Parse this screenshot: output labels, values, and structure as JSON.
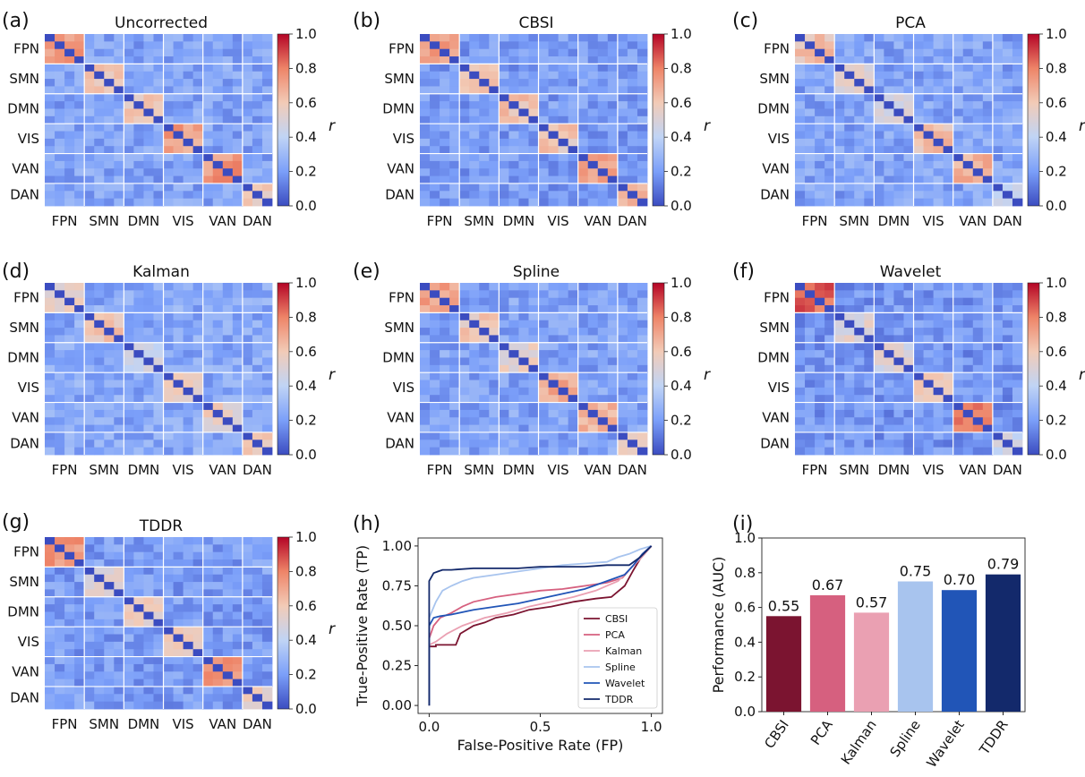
{
  "colors": {
    "cmap_stops": [
      "#3b4cc0",
      "#7b9ff9",
      "#c0d4f5",
      "#f2cbb7",
      "#ee8468",
      "#b40426"
    ],
    "roc_series": [
      "#7b1430",
      "#d6607f",
      "#eaa0b2",
      "#a8c4ee",
      "#2155b7",
      "#13296b"
    ]
  },
  "chart_data": [
    {
      "type": "heatmap",
      "panel_label": "(a)",
      "title": "Uncorrected",
      "networks": [
        "FPN",
        "SMN",
        "DMN",
        "VIS",
        "VAN",
        "DAN"
      ],
      "tick_labels": [
        "FPN",
        "SMN",
        "DMN",
        "VIS",
        "VAN",
        "DAN"
      ],
      "network_sizes": [
        4,
        4,
        4,
        4,
        4,
        3
      ],
      "within_network_r": [
        0.75,
        0.62,
        0.58,
        0.72,
        0.75,
        0.58
      ],
      "background_r": 0.22,
      "diagonal_r": 0.0,
      "colorbar": {
        "label": "r",
        "vmin": 0.0,
        "vmax": 1.0,
        "ticks": [
          "0.0",
          "0.2",
          "0.4",
          "0.6",
          "0.8",
          "1.0"
        ]
      }
    },
    {
      "type": "heatmap",
      "panel_label": "(b)",
      "title": "CBSI",
      "networks": [
        "FPN",
        "SMN",
        "DMN",
        "VIS",
        "VAN",
        "DAN"
      ],
      "tick_labels": [
        "FPN",
        "SMN",
        "DMN",
        "VIS",
        "VAN",
        "DAN"
      ],
      "network_sizes": [
        4,
        4,
        4,
        4,
        4,
        3
      ],
      "within_network_r": [
        0.75,
        0.6,
        0.62,
        0.6,
        0.72,
        0.7
      ],
      "background_r": 0.2,
      "diagonal_r": 0.0,
      "colorbar": {
        "label": "r",
        "vmin": 0.0,
        "vmax": 1.0,
        "ticks": [
          "0.0",
          "0.2",
          "0.4",
          "0.6",
          "0.8",
          "1.0"
        ]
      }
    },
    {
      "type": "heatmap",
      "panel_label": "(c)",
      "title": "PCA",
      "networks": [
        "FPN",
        "SMN",
        "DMN",
        "VIS",
        "VAN",
        "DAN"
      ],
      "tick_labels": [
        "FPN",
        "SMN",
        "DMN",
        "VIS",
        "VAN",
        "DAN"
      ],
      "network_sizes": [
        4,
        4,
        4,
        4,
        4,
        3
      ],
      "within_network_r": [
        0.62,
        0.52,
        0.5,
        0.62,
        0.68,
        0.45
      ],
      "background_r": 0.22,
      "diagonal_r": 0.0,
      "colorbar": {
        "label": "r",
        "vmin": 0.0,
        "vmax": 1.0,
        "ticks": [
          "0.0",
          "0.2",
          "0.4",
          "0.6",
          "0.8",
          "1.0"
        ]
      }
    },
    {
      "type": "heatmap",
      "panel_label": "(d)",
      "title": "Kalman",
      "networks": [
        "FPN",
        "SMN",
        "DMN",
        "VIS",
        "VAN",
        "DAN"
      ],
      "tick_labels": [
        "FPN",
        "SMN",
        "DMN",
        "VIS",
        "VAN",
        "DAN"
      ],
      "network_sizes": [
        4,
        4,
        4,
        4,
        4,
        3
      ],
      "within_network_r": [
        0.55,
        0.6,
        0.45,
        0.55,
        0.55,
        0.6
      ],
      "background_r": 0.24,
      "diagonal_r": 0.0,
      "colorbar": {
        "label": "r",
        "vmin": 0.0,
        "vmax": 1.0,
        "ticks": [
          "0.0",
          "0.2",
          "0.4",
          "0.6",
          "0.8",
          "1.0"
        ]
      }
    },
    {
      "type": "heatmap",
      "panel_label": "(e)",
      "title": "Spline",
      "networks": [
        "FPN",
        "SMN",
        "DMN",
        "VIS",
        "VAN",
        "DAN"
      ],
      "tick_labels": [
        "FPN",
        "SMN",
        "DMN",
        "VIS",
        "VAN",
        "DAN"
      ],
      "network_sizes": [
        4,
        4,
        4,
        4,
        4,
        3
      ],
      "within_network_r": [
        0.72,
        0.6,
        0.55,
        0.68,
        0.68,
        0.55
      ],
      "background_r": 0.22,
      "diagonal_r": 0.0,
      "colorbar": {
        "label": "r",
        "vmin": 0.0,
        "vmax": 1.0,
        "ticks": [
          "0.0",
          "0.2",
          "0.4",
          "0.6",
          "0.8",
          "1.0"
        ]
      }
    },
    {
      "type": "heatmap",
      "panel_label": "(f)",
      "title": "Wavelet",
      "networks": [
        "FPN",
        "SMN",
        "DMN",
        "VIS",
        "VAN",
        "DAN"
      ],
      "tick_labels": [
        "FPN",
        "SMN",
        "DMN",
        "VIS",
        "VAN",
        "DAN"
      ],
      "network_sizes": [
        4,
        4,
        4,
        4,
        4,
        3
      ],
      "within_network_r": [
        0.85,
        0.5,
        0.5,
        0.55,
        0.82,
        0.45
      ],
      "background_r": 0.18,
      "diagonal_r": 0.0,
      "colorbar": {
        "label": "r",
        "vmin": 0.0,
        "vmax": 1.0,
        "ticks": [
          "0.0",
          "0.2",
          "0.4",
          "0.6",
          "0.8",
          "1.0"
        ]
      }
    },
    {
      "type": "heatmap",
      "panel_label": "(g)",
      "title": "TDDR",
      "networks": [
        "FPN",
        "SMN",
        "DMN",
        "VIS",
        "VAN",
        "DAN"
      ],
      "tick_labels": [
        "FPN",
        "SMN",
        "DMN",
        "VIS",
        "VAN",
        "DAN"
      ],
      "network_sizes": [
        4,
        4,
        4,
        4,
        4,
        3
      ],
      "within_network_r": [
        0.75,
        0.52,
        0.55,
        0.55,
        0.78,
        0.55
      ],
      "background_r": 0.2,
      "diagonal_r": 0.0,
      "colorbar": {
        "label": "r",
        "vmin": 0.0,
        "vmax": 1.0,
        "ticks": [
          "0.0",
          "0.2",
          "0.4",
          "0.6",
          "0.8",
          "1.0"
        ]
      }
    },
    {
      "type": "line",
      "panel_label": "(h)",
      "xlabel": "False-Positive Rate (FP)",
      "ylabel": "True-Positive Rate (TP)",
      "xlim": [
        -0.05,
        1.05
      ],
      "ylim": [
        -0.05,
        1.05
      ],
      "xticks": [
        "0.0",
        "0.5",
        "1.0"
      ],
      "yticks": [
        "0.00",
        "0.25",
        "0.50",
        "0.75",
        "1.00"
      ],
      "legend": "lower-right",
      "series": [
        {
          "name": "CBSI",
          "x": [
            0,
            0,
            0.03,
            0.03,
            0.12,
            0.14,
            0.2,
            0.25,
            0.3,
            0.38,
            0.45,
            0.55,
            0.65,
            0.75,
            0.82,
            0.88,
            0.92,
            0.95,
            1.0
          ],
          "y": [
            0,
            0.37,
            0.37,
            0.38,
            0.38,
            0.45,
            0.5,
            0.52,
            0.55,
            0.57,
            0.6,
            0.62,
            0.65,
            0.67,
            0.68,
            0.75,
            0.85,
            0.92,
            1.0
          ]
        },
        {
          "name": "PCA",
          "x": [
            0,
            0,
            0.02,
            0.05,
            0.1,
            0.15,
            0.2,
            0.3,
            0.4,
            0.5,
            0.6,
            0.7,
            0.8,
            0.87,
            0.92,
            0.96,
            1.0
          ],
          "y": [
            0,
            0.42,
            0.5,
            0.55,
            0.58,
            0.62,
            0.65,
            0.68,
            0.7,
            0.72,
            0.73,
            0.75,
            0.77,
            0.8,
            0.88,
            0.95,
            1.0
          ]
        },
        {
          "name": "Kalman",
          "x": [
            0,
            0,
            0.03,
            0.08,
            0.15,
            0.25,
            0.35,
            0.45,
            0.55,
            0.65,
            0.75,
            0.85,
            0.9,
            0.95,
            1.0
          ],
          "y": [
            0,
            0.38,
            0.4,
            0.45,
            0.5,
            0.55,
            0.58,
            0.62,
            0.65,
            0.68,
            0.72,
            0.78,
            0.85,
            0.92,
            1.0
          ]
        },
        {
          "name": "Spline",
          "x": [
            0,
            0,
            0.03,
            0.06,
            0.1,
            0.15,
            0.2,
            0.3,
            0.4,
            0.5,
            0.6,
            0.7,
            0.8,
            0.85,
            0.9,
            0.95,
            1.0
          ],
          "y": [
            0,
            0.55,
            0.65,
            0.72,
            0.75,
            0.78,
            0.8,
            0.82,
            0.84,
            0.86,
            0.88,
            0.89,
            0.9,
            0.93,
            0.95,
            0.98,
            1.0
          ]
        },
        {
          "name": "Wavelet",
          "x": [
            0,
            0,
            0.02,
            0.05,
            0.1,
            0.2,
            0.3,
            0.4,
            0.5,
            0.6,
            0.7,
            0.8,
            0.88,
            0.92,
            0.96,
            1.0
          ],
          "y": [
            0,
            0.5,
            0.55,
            0.56,
            0.57,
            0.6,
            0.62,
            0.64,
            0.67,
            0.7,
            0.73,
            0.78,
            0.82,
            0.88,
            0.95,
            1.0
          ]
        },
        {
          "name": "TDDR",
          "x": [
            0,
            0,
            0.02,
            0.04,
            0.06,
            0.1,
            0.2,
            0.3,
            0.4,
            0.5,
            0.6,
            0.7,
            0.8,
            0.9,
            0.95,
            1.0
          ],
          "y": [
            0,
            0.78,
            0.83,
            0.84,
            0.85,
            0.85,
            0.86,
            0.86,
            0.86,
            0.87,
            0.87,
            0.87,
            0.88,
            0.88,
            0.93,
            1.0
          ]
        }
      ]
    },
    {
      "type": "bar",
      "panel_label": "(i)",
      "ylabel": "Performance (AUC)",
      "ylim": [
        0.0,
        1.0
      ],
      "yticks": [
        "0.0",
        "0.2",
        "0.4",
        "0.6",
        "0.8",
        "1.0"
      ],
      "categories": [
        "CBSI",
        "PCA",
        "Kalman",
        "Spline",
        "Wavelet",
        "TDDR"
      ],
      "values": [
        0.55,
        0.67,
        0.57,
        0.75,
        0.7,
        0.79
      ],
      "value_labels": [
        "0.55",
        "0.67",
        "0.57",
        "0.75",
        "0.70",
        "0.79"
      ]
    }
  ]
}
